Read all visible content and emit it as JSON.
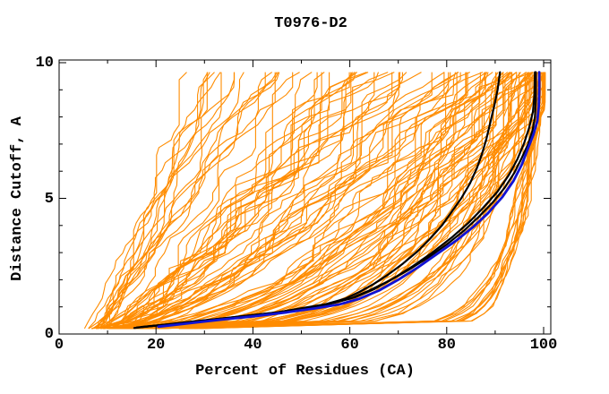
{
  "chart_data": {
    "type": "line",
    "title": "T0976-D2",
    "xlabel": "Percent of Residues (CA)",
    "ylabel": "Distance Cutoff, A",
    "xlim": [
      0,
      100
    ],
    "ylim": [
      0,
      10
    ],
    "grid": "off",
    "legend": "none",
    "x_major_ticks": [
      0,
      20,
      40,
      60,
      80,
      100
    ],
    "x_minor_ticks": [
      10,
      30,
      50,
      70,
      90
    ],
    "y_major_ticks": [
      0,
      5,
      10
    ],
    "y_minor_ticks": [
      1,
      2,
      3,
      4,
      6,
      7,
      8,
      9
    ],
    "cutoff_range": [
      0.2,
      9.65
    ],
    "colors": {
      "model_curves": "#ff8c00",
      "black_curves": "#000000",
      "blue_curve": "#1113d4",
      "frame": "#000000",
      "background": "#ffffff"
    },
    "highlight_curves": {
      "blue": [
        [
          20.5,
          0.27
        ],
        [
          27,
          0.4
        ],
        [
          33,
          0.52
        ],
        [
          40,
          0.65
        ],
        [
          47,
          0.8
        ],
        [
          53,
          0.95
        ],
        [
          58,
          1.1
        ],
        [
          62,
          1.3
        ],
        [
          66,
          1.6
        ],
        [
          70,
          2.0
        ],
        [
          74,
          2.45
        ],
        [
          78,
          2.95
        ],
        [
          82,
          3.45
        ],
        [
          85.5,
          3.95
        ],
        [
          88.5,
          4.45
        ],
        [
          91.5,
          5.05
        ],
        [
          93.8,
          5.65
        ],
        [
          95.5,
          6.25
        ],
        [
          96.8,
          6.85
        ],
        [
          97.9,
          7.35
        ],
        [
          98.7,
          7.85
        ],
        [
          99.0,
          8.4
        ],
        [
          99.1,
          9.0
        ],
        [
          99.1,
          9.65
        ]
      ],
      "black": [
        [
          [
            15.5,
            0.22
          ],
          [
            21,
            0.33
          ],
          [
            27,
            0.45
          ],
          [
            33,
            0.56
          ],
          [
            39,
            0.68
          ],
          [
            45,
            0.8
          ],
          [
            50,
            0.95
          ],
          [
            55,
            1.1
          ],
          [
            59,
            1.3
          ],
          [
            62,
            1.55
          ],
          [
            65,
            1.85
          ],
          [
            68,
            2.2
          ],
          [
            71,
            2.6
          ],
          [
            74,
            3.05
          ],
          [
            76.5,
            3.5
          ],
          [
            79,
            4.0
          ],
          [
            81,
            4.5
          ],
          [
            83,
            5.0
          ],
          [
            84.8,
            5.55
          ],
          [
            86.2,
            6.1
          ],
          [
            87.3,
            6.65
          ],
          [
            88.2,
            7.2
          ],
          [
            89,
            7.8
          ],
          [
            89.8,
            8.4
          ],
          [
            90.5,
            9.0
          ],
          [
            91,
            9.65
          ]
        ],
        [
          [
            16,
            0.24
          ],
          [
            23,
            0.36
          ],
          [
            30,
            0.5
          ],
          [
            37,
            0.63
          ],
          [
            44,
            0.77
          ],
          [
            50,
            0.92
          ],
          [
            55,
            1.08
          ],
          [
            60,
            1.3
          ],
          [
            64,
            1.6
          ],
          [
            68,
            1.95
          ],
          [
            72,
            2.35
          ],
          [
            76,
            2.8
          ],
          [
            80,
            3.3
          ],
          [
            83.5,
            3.8
          ],
          [
            86.5,
            4.3
          ],
          [
            89.5,
            4.85
          ],
          [
            92,
            5.4
          ],
          [
            94,
            5.95
          ],
          [
            95.5,
            6.5
          ],
          [
            96.8,
            7.0
          ],
          [
            97.7,
            7.5
          ],
          [
            98.2,
            8.0
          ],
          [
            98.4,
            8.6
          ],
          [
            98.4,
            9.65
          ]
        ],
        [
          [
            17,
            0.26
          ],
          [
            24,
            0.38
          ],
          [
            31,
            0.52
          ],
          [
            38,
            0.66
          ],
          [
            45,
            0.8
          ],
          [
            51,
            0.96
          ],
          [
            56,
            1.12
          ],
          [
            61,
            1.35
          ],
          [
            65,
            1.65
          ],
          [
            69,
            2.05
          ],
          [
            73,
            2.5
          ],
          [
            77,
            3.0
          ],
          [
            81,
            3.55
          ],
          [
            84.5,
            4.1
          ],
          [
            87.5,
            4.65
          ],
          [
            90.5,
            5.25
          ],
          [
            92.8,
            5.85
          ],
          [
            94.6,
            6.45
          ],
          [
            96,
            7.05
          ],
          [
            97,
            7.6
          ],
          [
            97.8,
            8.2
          ],
          [
            98.1,
            8.8
          ],
          [
            98.2,
            9.65
          ]
        ]
      ]
    },
    "model_curve_families": [
      {
        "count": 16,
        "x_start": [
          5,
          11
        ],
        "x_at_max_cutoff": [
          26,
          46
        ],
        "shape_exp": [
          0.8,
          1.15
        ],
        "wobble": 2.2
      },
      {
        "count": 20,
        "x_start": [
          6,
          14
        ],
        "x_at_max_cutoff": [
          46,
          68
        ],
        "shape_exp": [
          0.55,
          0.9
        ],
        "wobble": 4.5
      },
      {
        "count": 22,
        "x_start": [
          8,
          16
        ],
        "x_at_max_cutoff": [
          68,
          86
        ],
        "shape_exp": [
          0.4,
          0.7
        ],
        "wobble": 4.2
      },
      {
        "count": 28,
        "x_start": [
          9,
          18
        ],
        "x_at_max_cutoff": [
          86,
          96
        ],
        "shape_exp": [
          0.25,
          0.5
        ],
        "wobble": 3.2
      },
      {
        "count": 24,
        "x_start": [
          10,
          22
        ],
        "x_at_max_cutoff": [
          96,
          99.6
        ],
        "shape_exp": [
          0.13,
          0.3
        ],
        "wobble": 2.0
      },
      {
        "count": 14,
        "x_start": [
          15,
          32
        ],
        "x_at_max_cutoff": [
          99,
          100
        ],
        "shape_exp": [
          0.06,
          0.1
        ],
        "wobble": 1.2
      }
    ],
    "random_seed": 20976
  }
}
